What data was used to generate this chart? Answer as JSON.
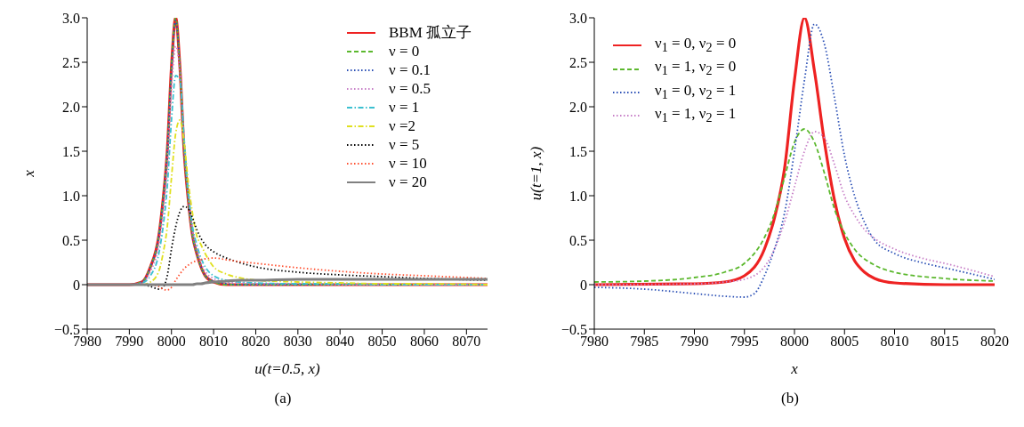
{
  "chart_data": [
    {
      "type": "line",
      "xlabel": "u(t=0.5, x)",
      "ylabel": "x",
      "annotations": [
        "(a)"
      ],
      "legend": "top right",
      "xlim": [
        7980,
        8075
      ],
      "xticks": [
        7980,
        7990,
        8000,
        8010,
        8020,
        8030,
        8040,
        8050,
        8060,
        8070
      ],
      "ylim": [
        -0.5,
        3.0
      ],
      "yticks": [
        {
          "value": -0.5,
          "label": "−0.5"
        },
        0,
        0.5,
        {
          "value": 1,
          "label": "1.0"
        },
        1.5,
        {
          "value": 2,
          "label": "2.0"
        },
        2.5,
        {
          "value": 3,
          "label": "3.0"
        }
      ],
      "x": [
        7980,
        7990,
        7993,
        7995,
        7997,
        7998,
        7999,
        8000,
        8001,
        8002,
        8003,
        8004,
        8005,
        8006,
        8007,
        8008,
        8010,
        8013,
        8016,
        8020,
        8030,
        8040,
        8050,
        8060,
        8075
      ],
      "series": [
        {
          "name": "BBM 孤立子",
          "color": "#ee2222",
          "line_style": "solid",
          "values": [
            0,
            0,
            0.03,
            0.2,
            0.55,
            0.95,
            1.5,
            2.45,
            3.0,
            2.45,
            1.5,
            0.95,
            0.55,
            0.35,
            0.2,
            0.1,
            0.03,
            0,
            0,
            0,
            0,
            0,
            0,
            0,
            0
          ]
        },
        {
          "name": "ν = 0",
          "color": "#5cb82e",
          "line_style": "dashed",
          "values": [
            0,
            0,
            0.03,
            0.2,
            0.55,
            0.95,
            1.5,
            2.45,
            3.0,
            2.45,
            1.5,
            0.95,
            0.55,
            0.35,
            0.2,
            0.1,
            0.03,
            0,
            0,
            0,
            0,
            0,
            0,
            0,
            0
          ]
        },
        {
          "name": "ν = 0.1",
          "color": "#2a4fb5",
          "line_style": "dotted",
          "values": [
            0,
            0,
            0.03,
            0.2,
            0.55,
            0.95,
            1.5,
            2.43,
            2.97,
            2.45,
            1.5,
            0.95,
            0.55,
            0.35,
            0.2,
            0.1,
            0.04,
            0.01,
            0,
            0,
            0,
            0,
            0,
            0,
            0
          ]
        },
        {
          "name": "ν = 0.5",
          "color": "#c77fc7",
          "line_style": "dotted",
          "values": [
            0,
            0,
            0.02,
            0.15,
            0.45,
            0.8,
            1.3,
            2.2,
            2.68,
            2.4,
            1.6,
            1.0,
            0.6,
            0.4,
            0.25,
            0.15,
            0.07,
            0.03,
            0.02,
            0.01,
            0.01,
            0,
            0,
            0,
            0
          ]
        },
        {
          "name": "ν = 1",
          "color": "#3cc0d0",
          "line_style": "dashdot",
          "values": [
            0,
            0,
            0.02,
            0.1,
            0.35,
            0.65,
            1.1,
            1.85,
            2.35,
            2.3,
            1.65,
            1.05,
            0.65,
            0.45,
            0.3,
            0.2,
            0.1,
            0.05,
            0.03,
            0.02,
            0.01,
            0.01,
            0,
            0,
            0
          ]
        },
        {
          "name": "ν =2",
          "color": "#e0e020",
          "line_style": "dashdot",
          "values": [
            0,
            0,
            0,
            0.03,
            0.15,
            0.35,
            0.65,
            1.2,
            1.7,
            1.85,
            1.6,
            1.15,
            0.8,
            0.55,
            0.45,
            0.35,
            0.2,
            0.12,
            0.08,
            0.05,
            0.03,
            0.02,
            0.01,
            0.01,
            0
          ]
        },
        {
          "name": "ν = 5",
          "color": "#000000",
          "line_style": "dotted",
          "values": [
            0,
            0,
            0,
            -0.02,
            -0.05,
            -0.03,
            0.1,
            0.4,
            0.65,
            0.82,
            0.88,
            0.85,
            0.75,
            0.62,
            0.52,
            0.45,
            0.37,
            0.3,
            0.25,
            0.2,
            0.14,
            0.11,
            0.09,
            0.07,
            0.05
          ]
        },
        {
          "name": "ν = 10",
          "color": "#ff5030",
          "line_style": "dotted",
          "values": [
            0,
            0,
            0,
            0,
            -0.02,
            -0.05,
            -0.06,
            -0.03,
            0.05,
            0.12,
            0.18,
            0.22,
            0.25,
            0.27,
            0.28,
            0.29,
            0.3,
            0.28,
            0.26,
            0.24,
            0.19,
            0.15,
            0.12,
            0.1,
            0.07
          ]
        },
        {
          "name": "ν = 20",
          "color": "#808080",
          "line_style": "solid",
          "values": [
            0,
            0,
            0,
            0,
            0,
            0,
            0,
            0,
            0,
            0,
            0,
            0,
            0,
            0.01,
            0.01,
            0.02,
            0.03,
            0.04,
            0.05,
            0.05,
            0.06,
            0.06,
            0.06,
            0.06,
            0.06
          ]
        }
      ]
    },
    {
      "type": "line",
      "xlabel": "x",
      "ylabel": "u(t=1, x)",
      "annotations": [
        "(b)"
      ],
      "legend": "top left",
      "xlim": [
        7980,
        8020
      ],
      "xticks": [
        7980,
        7985,
        7990,
        7995,
        8000,
        8005,
        8010,
        8015,
        8020
      ],
      "ylim": [
        -0.5,
        3.0
      ],
      "yticks": [
        {
          "value": -0.5,
          "label": "−0.5"
        },
        0,
        0.5,
        {
          "value": 1,
          "label": "1.0"
        },
        1.5,
        {
          "value": 2,
          "label": "2.0"
        },
        2.5,
        {
          "value": 3,
          "label": "3.0"
        }
      ],
      "series": [
        {
          "name": "ν$_{1}$ = 0, ν$_{2}$ = 0",
          "color": "#ee2222",
          "line_style": "solid",
          "x": [
            7980,
            7990,
            7993,
            7995,
            7997,
            7998,
            7999,
            8000,
            8001,
            8002,
            8003,
            8004,
            8005,
            8006,
            8007,
            8008,
            8010,
            8015,
            8020
          ],
          "values": [
            0,
            0.01,
            0.03,
            0.1,
            0.4,
            0.75,
            1.3,
            2.3,
            3.0,
            2.4,
            1.6,
            0.95,
            0.52,
            0.27,
            0.14,
            0.07,
            0.02,
            0,
            0
          ]
        },
        {
          "name": "ν$_{1}$ = 1, ν$_{2}$ = 0",
          "color": "#5cb82e",
          "line_style": "dashed",
          "x": [
            7980,
            7985,
            7990,
            7993,
            7995,
            7997,
            7998,
            7999,
            8000,
            8001,
            8002,
            8003,
            8004,
            8005,
            8006,
            8008,
            8010,
            8015,
            8020
          ],
          "values": [
            0.03,
            0.04,
            0.08,
            0.14,
            0.24,
            0.53,
            0.8,
            1.2,
            1.6,
            1.75,
            1.6,
            1.25,
            0.85,
            0.58,
            0.4,
            0.22,
            0.14,
            0.07,
            0.04
          ]
        },
        {
          "name": "ν$_{1}$ = 0, ν$_{2}$ = 1",
          "color": "#2a4fb5",
          "line_style": "dotted",
          "x": [
            7980,
            7985,
            7990,
            7993,
            7995,
            7996,
            7997,
            7998,
            7999,
            8000,
            8001,
            8002,
            8003,
            8004,
            8005,
            8006,
            8007,
            8008,
            8010,
            8013,
            8015,
            8020
          ],
          "values": [
            -0.03,
            -0.05,
            -0.1,
            -0.13,
            -0.14,
            -0.1,
            0.1,
            0.4,
            0.8,
            1.5,
            2.3,
            2.93,
            2.7,
            2.1,
            1.45,
            1.0,
            0.7,
            0.5,
            0.35,
            0.24,
            0.19,
            0.06
          ]
        },
        {
          "name": "ν$_{1}$ = 1, ν$_{2}$ = 1",
          "color": "#c77fc7",
          "line_style": "dotted",
          "x": [
            7980,
            7990,
            7993,
            7995,
            7997,
            7998,
            7999,
            8000,
            8001,
            8002,
            8003,
            8004,
            8005,
            8006,
            8007,
            8008,
            8010,
            8013,
            8015,
            8020
          ],
          "values": [
            0,
            0.01,
            0.03,
            0.06,
            0.2,
            0.4,
            0.7,
            1.1,
            1.5,
            1.72,
            1.65,
            1.35,
            1.0,
            0.78,
            0.62,
            0.52,
            0.4,
            0.29,
            0.24,
            0.09
          ]
        }
      ]
    }
  ]
}
